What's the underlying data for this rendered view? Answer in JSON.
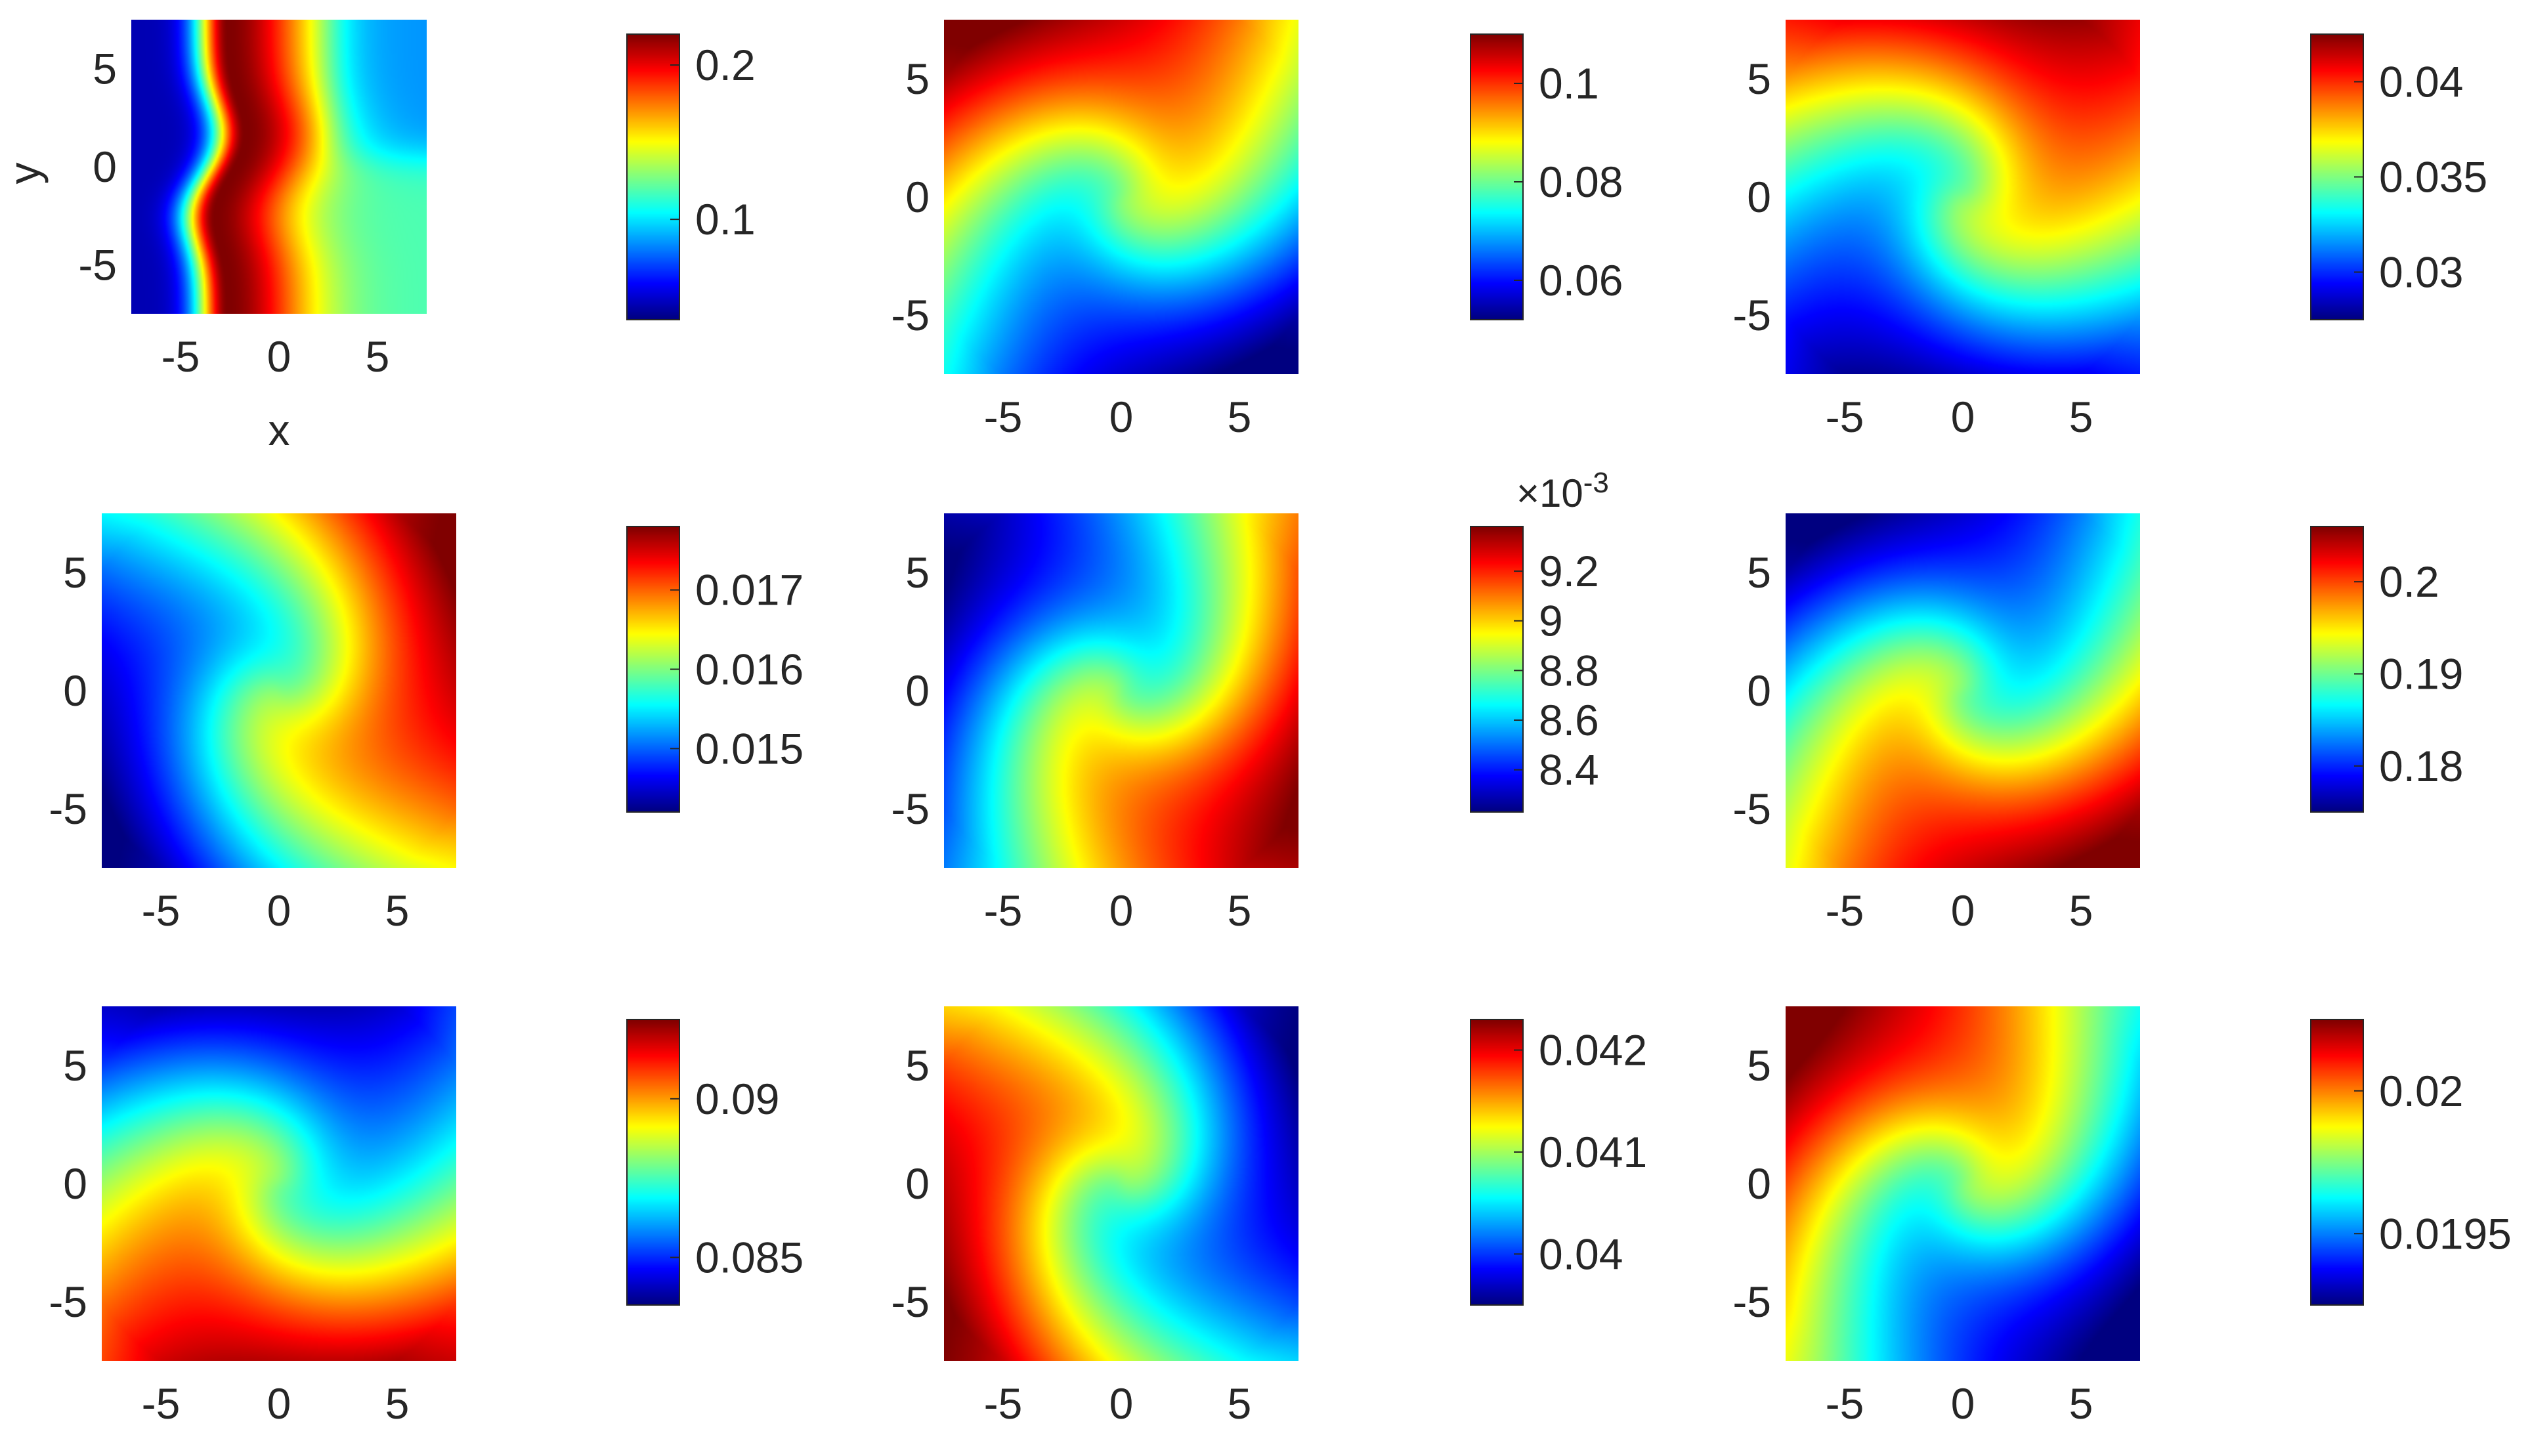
{
  "chart_data": [
    {
      "type": "heatmap",
      "pattern": "wave",
      "xlabel": "x",
      "ylabel": "y",
      "x_ticks": [
        "-5",
        "0",
        "5"
      ],
      "y_ticks": [
        "5",
        "0",
        "-5"
      ],
      "xlim": [
        -7.5,
        7.5
      ],
      "ylim": [
        -7.5,
        7.5
      ],
      "colorbar": {
        "ticks": [
          "0.2",
          "0.1"
        ],
        "tick_values": [
          0.2,
          0.1
        ],
        "range": [
          0.035,
          0.22
        ],
        "exponent": ""
      }
    },
    {
      "type": "heatmap",
      "pattern": "spiral",
      "swirl": 1.2,
      "dir": 2.356,
      "contrast": 1.0,
      "xlabel": "",
      "ylabel": "",
      "x_ticks": [
        "-5",
        "0",
        "5"
      ],
      "y_ticks": [
        "5",
        "0",
        "-5"
      ],
      "xlim": [
        -7.5,
        7.5
      ],
      "ylim": [
        -7.5,
        7.5
      ],
      "colorbar": {
        "ticks": [
          "0.1",
          "0.08",
          "0.06"
        ],
        "tick_values": [
          0.1,
          0.08,
          0.06
        ],
        "range": [
          0.052,
          0.11
        ],
        "exponent": ""
      }
    },
    {
      "type": "heatmap",
      "pattern": "spiral",
      "swirl": 1.3,
      "dir": 1.75,
      "contrast": 1.0,
      "xlabel": "",
      "ylabel": "",
      "x_ticks": [
        "-5",
        "0",
        "5"
      ],
      "y_ticks": [
        "5",
        "0",
        "-5"
      ],
      "xlim": [
        -7.5,
        7.5
      ],
      "ylim": [
        -7.5,
        7.5
      ],
      "colorbar": {
        "ticks": [
          "0.04",
          "0.035",
          "0.03"
        ],
        "tick_values": [
          0.04,
          0.035,
          0.03
        ],
        "range": [
          0.0275,
          0.0425
        ],
        "exponent": ""
      }
    },
    {
      "type": "heatmap",
      "pattern": "spiral",
      "swirl": 1.2,
      "dir": 0.75,
      "contrast": 1.0,
      "xlabel": "",
      "ylabel": "",
      "x_ticks": [
        "-5",
        "0",
        "5"
      ],
      "y_ticks": [
        "5",
        "0",
        "-5"
      ],
      "xlim": [
        -7.5,
        7.5
      ],
      "ylim": [
        -7.5,
        7.5
      ],
      "colorbar": {
        "ticks": [
          "0.017",
          "0.016",
          "0.015"
        ],
        "tick_values": [
          0.017,
          0.016,
          0.015
        ],
        "range": [
          0.0142,
          0.0178
        ],
        "exponent": ""
      }
    },
    {
      "type": "heatmap",
      "pattern": "spiral",
      "swirl": 1.3,
      "dir": -0.05,
      "contrast": 1.0,
      "xlabel": "",
      "ylabel": "",
      "x_ticks": [
        "-5",
        "0",
        "5"
      ],
      "y_ticks": [
        "5",
        "0",
        "-5"
      ],
      "xlim": [
        -7.5,
        7.5
      ],
      "ylim": [
        -7.5,
        7.5
      ],
      "colorbar": {
        "ticks": [
          "9.2",
          "9",
          "8.8",
          "8.6",
          "8.4"
        ],
        "tick_values": [
          9.2,
          9.0,
          8.8,
          8.6,
          8.4
        ],
        "range": [
          8.23,
          9.38
        ],
        "exponent": "×10-3"
      }
    },
    {
      "type": "heatmap",
      "pattern": "spiral",
      "swirl": 1.3,
      "dir": -0.75,
      "contrast": 1.0,
      "xlabel": "",
      "ylabel": "",
      "x_ticks": [
        "-5",
        "0",
        "5"
      ],
      "y_ticks": [
        "5",
        "0",
        "-5"
      ],
      "xlim": [
        -7.5,
        7.5
      ],
      "ylim": [
        -7.5,
        7.5
      ],
      "colorbar": {
        "ticks": [
          "0.2",
          "0.19",
          "0.18"
        ],
        "tick_values": [
          0.2,
          0.19,
          0.18
        ],
        "range": [
          0.175,
          0.206
        ],
        "exponent": ""
      }
    },
    {
      "type": "heatmap",
      "pattern": "spiral",
      "swirl": 1.2,
      "dir": -1.2,
      "contrast": 1.0,
      "xlabel": "",
      "ylabel": "",
      "x_ticks": [
        "-5",
        "0",
        "5"
      ],
      "y_ticks": [
        "5",
        "0",
        "-5"
      ],
      "xlim": [
        -7.5,
        7.5
      ],
      "ylim": [
        -7.5,
        7.5
      ],
      "colorbar": {
        "ticks": [
          "0.09",
          "0.085"
        ],
        "tick_values": [
          0.09,
          0.085
        ],
        "range": [
          0.0835,
          0.0925
        ],
        "exponent": ""
      }
    },
    {
      "type": "heatmap",
      "pattern": "spiral",
      "swirl": 1.3,
      "dir": -2.45,
      "contrast": 1.0,
      "xlabel": "",
      "ylabel": "",
      "x_ticks": [
        "-5",
        "0",
        "5"
      ],
      "y_ticks": [
        "5",
        "0",
        "-5"
      ],
      "xlim": [
        -7.5,
        7.5
      ],
      "ylim": [
        -7.5,
        7.5
      ],
      "colorbar": {
        "ticks": [
          "0.042",
          "0.041",
          "0.04"
        ],
        "tick_values": [
          0.042,
          0.041,
          0.04
        ],
        "range": [
          0.0395,
          0.0423
        ],
        "exponent": ""
      }
    },
    {
      "type": "heatmap",
      "pattern": "spiral",
      "swirl": 1.3,
      "dir": 2.8,
      "contrast": 1.0,
      "xlabel": "",
      "ylabel": "",
      "x_ticks": [
        "-5",
        "0",
        "5"
      ],
      "y_ticks": [
        "5",
        "0",
        "-5"
      ],
      "xlim": [
        -7.5,
        7.5
      ],
      "ylim": [
        -7.5,
        7.5
      ],
      "colorbar": {
        "ticks": [
          "0.02",
          "0.0195"
        ],
        "tick_values": [
          0.02,
          0.0195
        ],
        "range": [
          0.01925,
          0.02025
        ],
        "exponent": ""
      }
    }
  ]
}
